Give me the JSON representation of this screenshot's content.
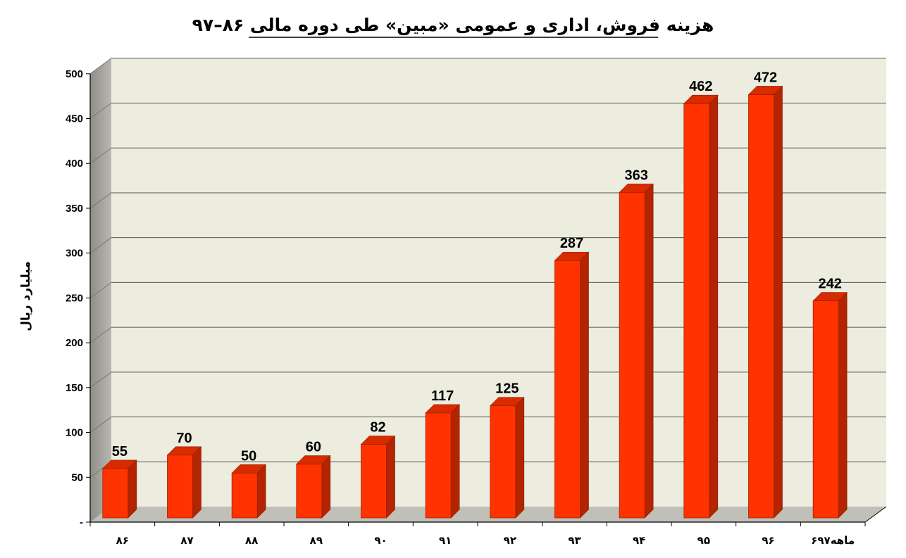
{
  "chart_data": {
    "type": "bar",
    "title": "هزینه فروش، اداری و عمومی «مبین» طی دوره مالی ۸۶–۹۷",
    "ylabel": "میلیارد ریال",
    "xlabel": "",
    "categories": [
      "۸۶",
      "۸۷",
      "۸۸",
      "۸۹",
      "۹۰",
      "۹۱",
      "۹۲",
      "۹۳",
      "۹۴",
      "۹۵",
      "۹۶",
      "۶ماهه۹۷"
    ],
    "values": [
      55,
      70,
      50,
      60,
      82,
      117,
      125,
      287,
      363,
      462,
      472,
      242
    ],
    "ylim": [
      0,
      500
    ],
    "yticks": [
      0,
      50,
      100,
      150,
      200,
      250,
      300,
      350,
      400,
      450,
      500
    ],
    "ytick_labels": [
      "-",
      "50",
      "100",
      "150",
      "200",
      "250",
      "300",
      "350",
      "400",
      "450",
      "500"
    ],
    "grid": true,
    "legend": "none",
    "style": "3d-column",
    "colors": {
      "bar_front": "#ff3300",
      "bar_side": "#b32400",
      "bar_top": "#d92b00",
      "plot_back": "#ececdf",
      "side_wall": "#a3a39a",
      "floor": "#c0c0b8",
      "gridline": "#555555"
    }
  }
}
